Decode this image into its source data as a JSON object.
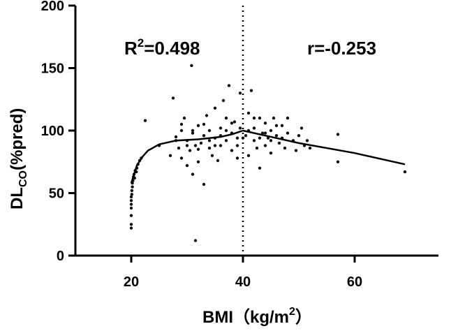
{
  "chart_data": {
    "type": "scatter",
    "title": "",
    "xlabel": {
      "main": "BMI（kg/m",
      "sup": "2",
      "close": "）"
    },
    "ylabel": {
      "main": "DL",
      "sub": "CO",
      "rest": "(%pred)"
    },
    "xlim": [
      10,
      75
    ],
    "ylim": [
      0,
      200
    ],
    "x_ticks": [
      20,
      40,
      60
    ],
    "y_ticks": [
      0,
      50,
      100,
      150,
      200
    ],
    "x_tick_labels": [
      "20",
      "40",
      "60"
    ],
    "y_tick_labels": [
      "0",
      "50",
      "100",
      "150",
      "200"
    ],
    "threshold_x": 40,
    "annotations": {
      "left": {
        "prefix": "R",
        "sup": "2",
        "rest": "=0.498"
      },
      "right": {
        "text": "r=-0.253"
      }
    },
    "fit_left": [
      [
        20,
        58
      ],
      [
        20.5,
        65
      ],
      [
        21,
        72
      ],
      [
        22,
        79
      ],
      [
        23,
        84
      ],
      [
        25,
        89
      ],
      [
        28,
        92
      ],
      [
        32,
        93
      ],
      [
        36,
        95
      ],
      [
        38,
        97
      ],
      [
        40,
        100
      ]
    ],
    "fit_right": [
      [
        40,
        100
      ],
      [
        50,
        90
      ],
      [
        60,
        82
      ],
      [
        69,
        73
      ]
    ],
    "points": [
      [
        20,
        22
      ],
      [
        20,
        25
      ],
      [
        20,
        32
      ],
      [
        20,
        38
      ],
      [
        20,
        41
      ],
      [
        20,
        44
      ],
      [
        20,
        47
      ],
      [
        20.1,
        49
      ],
      [
        20.1,
        52
      ],
      [
        20.2,
        55
      ],
      [
        20.2,
        58
      ],
      [
        20.3,
        60
      ],
      [
        20.4,
        63
      ],
      [
        20.5,
        65
      ],
      [
        20.7,
        68
      ],
      [
        21,
        70
      ],
      [
        21.2,
        73
      ],
      [
        21.5,
        76
      ],
      [
        21.8,
        78
      ],
      [
        20.6,
        62
      ],
      [
        20.9,
        67
      ],
      [
        22.5,
        108
      ],
      [
        25,
        88
      ],
      [
        27,
        80
      ],
      [
        27.5,
        126
      ],
      [
        28,
        95
      ],
      [
        28.5,
        86
      ],
      [
        29,
        78
      ],
      [
        29,
        100
      ],
      [
        29.5,
        110
      ],
      [
        30,
        92
      ],
      [
        30,
        72
      ],
      [
        30.5,
        84
      ],
      [
        30.8,
        152
      ],
      [
        31,
        98
      ],
      [
        31,
        65
      ],
      [
        31.5,
        88
      ],
      [
        31.5,
        12
      ],
      [
        32,
        104
      ],
      [
        32,
        75
      ],
      [
        32.5,
        90
      ],
      [
        33,
        96
      ],
      [
        33,
        57
      ],
      [
        33.5,
        112
      ],
      [
        34,
        86
      ],
      [
        34,
        100
      ],
      [
        34.5,
        80
      ],
      [
        35,
        94
      ],
      [
        35,
        118
      ],
      [
        35.5,
        76
      ],
      [
        36,
        102
      ],
      [
        36,
        88
      ],
      [
        36.5,
        124
      ],
      [
        37,
        92
      ],
      [
        37,
        110
      ],
      [
        37.5,
        136
      ],
      [
        38,
        98
      ],
      [
        38,
        84
      ],
      [
        38.5,
        107
      ],
      [
        39,
        94
      ],
      [
        39,
        78
      ],
      [
        39.5,
        130
      ],
      [
        39.5,
        102
      ],
      [
        40.5,
        96
      ],
      [
        41,
        114
      ],
      [
        41,
        80
      ],
      [
        41.5,
        132
      ],
      [
        42,
        92
      ],
      [
        42,
        102
      ],
      [
        42.5,
        86
      ],
      [
        43,
        110
      ],
      [
        43,
        70
      ],
      [
        43.5,
        98
      ],
      [
        44,
        106
      ],
      [
        44,
        88
      ],
      [
        44.5,
        94
      ],
      [
        45,
        82
      ],
      [
        45,
        100
      ],
      [
        45.5,
        110
      ],
      [
        46,
        96
      ],
      [
        46.5,
        90
      ],
      [
        47,
        104
      ],
      [
        47.5,
        86
      ],
      [
        48,
        98
      ],
      [
        48,
        110
      ],
      [
        49,
        92
      ],
      [
        49.5,
        84
      ],
      [
        50,
        96
      ],
      [
        50.5,
        102
      ],
      [
        51,
        88
      ],
      [
        51.5,
        92
      ],
      [
        52,
        86
      ],
      [
        57,
        97
      ],
      [
        57,
        75
      ],
      [
        69,
        67
      ],
      [
        28,
        92
      ],
      [
        29,
        105
      ],
      [
        30,
        88
      ],
      [
        31,
        100
      ],
      [
        32,
        85
      ],
      [
        33,
        105
      ],
      [
        34,
        92
      ],
      [
        35,
        88
      ],
      [
        36,
        96
      ],
      [
        37,
        100
      ],
      [
        38,
        106
      ],
      [
        39,
        88
      ],
      [
        40,
        94
      ],
      [
        41,
        100
      ],
      [
        42,
        110
      ],
      [
        43,
        94
      ],
      [
        44,
        98
      ],
      [
        45,
        92
      ],
      [
        46,
        104
      ],
      [
        47,
        94
      ]
    ]
  }
}
